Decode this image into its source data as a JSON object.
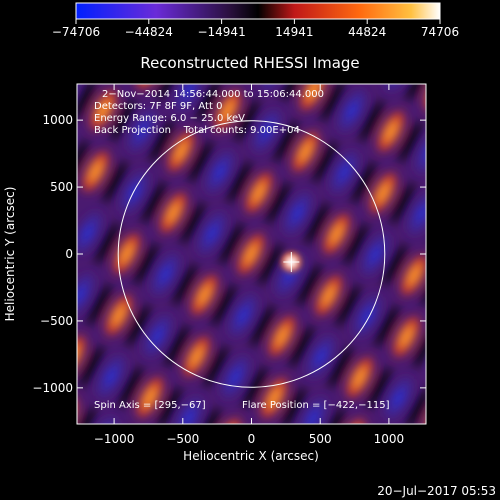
{
  "chart_data": {
    "type": "heatmap",
    "title": "Reconstructed RHESSI Image",
    "xlabel": "Heliocentric X (arcsec)",
    "ylabel": "Heliocentric Y (arcsec)",
    "xlim": [
      -1270,
      1270
    ],
    "ylim": [
      -1270,
      1270
    ],
    "x_ticks": [
      -1000,
      -500,
      0,
      500,
      1000
    ],
    "x_tick_labels": [
      "−1000",
      "−500",
      "0",
      "500",
      "1000"
    ],
    "y_ticks": [
      -1000,
      -500,
      0,
      500,
      1000
    ],
    "y_tick_labels": [
      "−1000",
      "−500",
      "0",
      "500",
      "1000"
    ],
    "colorbar": {
      "range": [
        -74706,
        74706
      ],
      "tick_values": [
        -74706,
        -44824,
        -14941,
        14941,
        44824,
        74706
      ],
      "tick_labels": [
        "−74706",
        "−44824",
        "−14941",
        "14941",
        "44824",
        "74706"
      ]
    },
    "solar_disk": {
      "center": [
        0,
        0
      ],
      "radius": 970
    },
    "flare_position": [
      -422,
      -115
    ],
    "peak_source": {
      "x": 290,
      "y": -60
    },
    "annotations": [
      "2−Nov−2014 14:56:44.000 to 15:06:44.000",
      "Detectors: 7F 8F 9F, Att 0",
      "Energy Range: 6.0 − 25.0 keV",
      "Back Projection    Total counts: 9.00E+04"
    ],
    "footer_left": "Spin Axis = [295,−67]",
    "footer_right": "Flare Position = [−422,−115]",
    "timestamp": "20−Jul−2017 05:53"
  }
}
